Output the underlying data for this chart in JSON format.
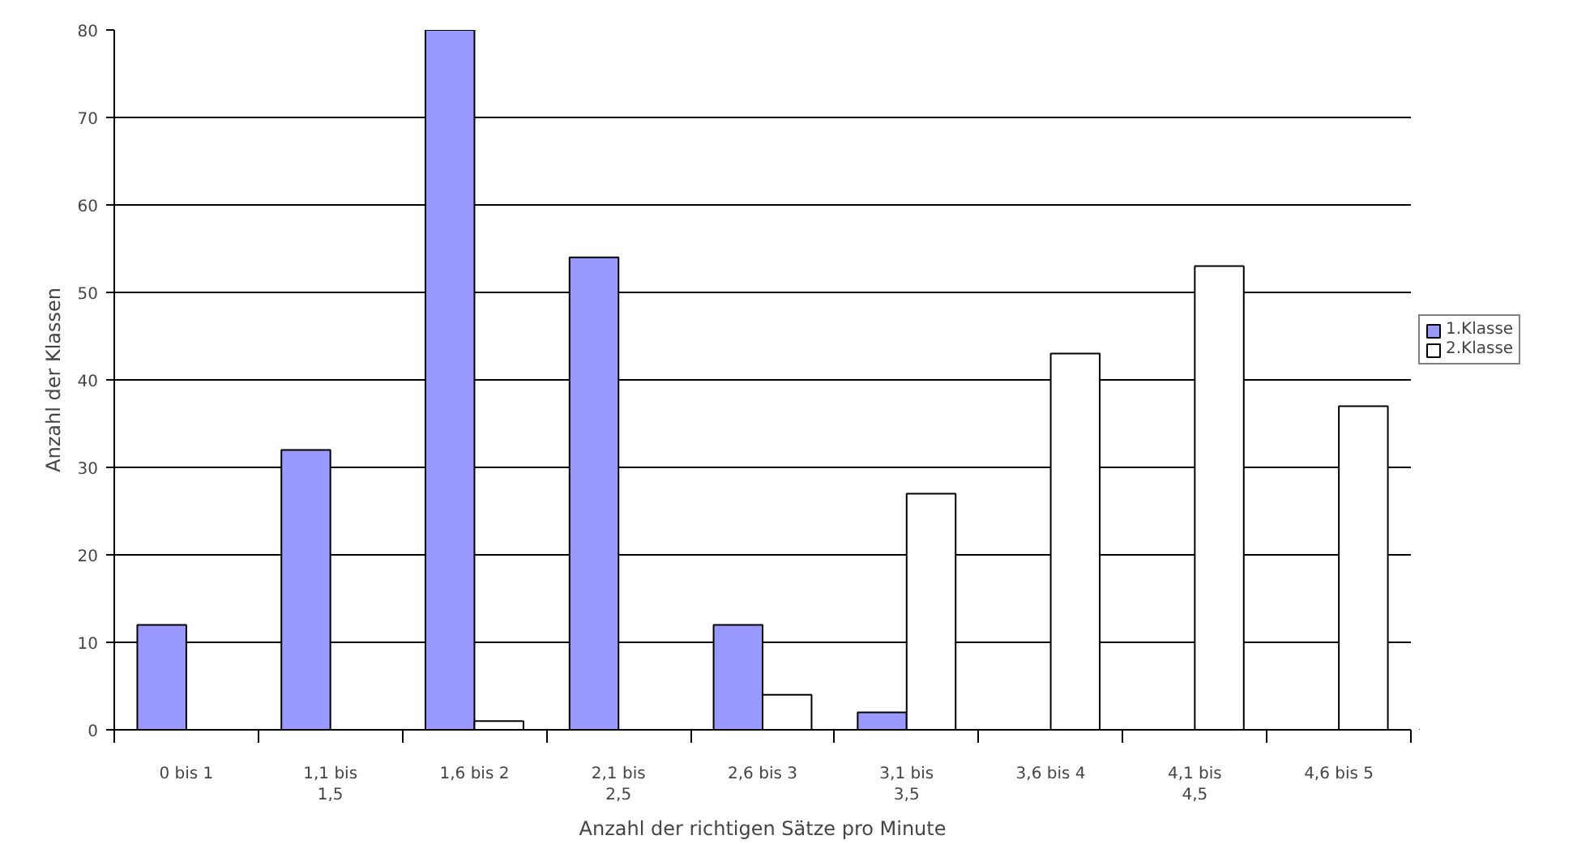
{
  "chart_data": {
    "type": "bar",
    "xlabel": "Anzahl der richtigen Sätze pro Minute",
    "ylabel": "Anzahl der Klassen",
    "categories": [
      "0 bis 1",
      "1,1 bis 1,5",
      "1,6 bis 2",
      "2,1 bis 2,5",
      "2,6 bis 3",
      "3,1 bis 3,5",
      "3,6 bis 4",
      "4,1 bis 4,5",
      "4,6 bis 5"
    ],
    "series": [
      {
        "name": "1.Klasse",
        "color": "#9999ff",
        "values": [
          12,
          32,
          80,
          54,
          12,
          2,
          0,
          0,
          0
        ]
      },
      {
        "name": "2.Klasse",
        "color": "#ffffff",
        "values": [
          0,
          0,
          1,
          0,
          4,
          27,
          43,
          53,
          37
        ]
      }
    ],
    "ylim": [
      0,
      80
    ],
    "yticks": [
      0,
      10,
      20,
      30,
      40,
      50,
      60,
      70,
      80
    ],
    "grid": "y",
    "legend": "right"
  }
}
